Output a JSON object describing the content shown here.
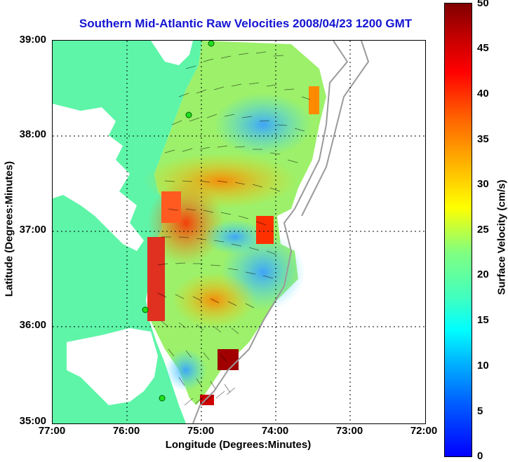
{
  "title": "Southern Mid-Atlantic Raw Velocities 2008/04/23 1200 GMT",
  "map": {
    "xlabel": "Longitude (Degrees:Minutes)",
    "ylabel": "Latitude (Degrees:Minutes)",
    "lon_ticks": [
      "77:00",
      "76:00",
      "75:00",
      "74:00",
      "73:00",
      "72:00"
    ],
    "lat_ticks": [
      "39:00",
      "38:00",
      "37:00",
      "36:00",
      "35:00"
    ],
    "land_color": "#5ef5a8",
    "grid": "dotted"
  },
  "colorbar": {
    "label": "Surface Velocity (cm/s)",
    "ticks": [
      "50",
      "45",
      "40",
      "35",
      "30",
      "25",
      "20",
      "15",
      "10",
      "5",
      "0"
    ],
    "range": [
      0,
      50
    ]
  }
}
